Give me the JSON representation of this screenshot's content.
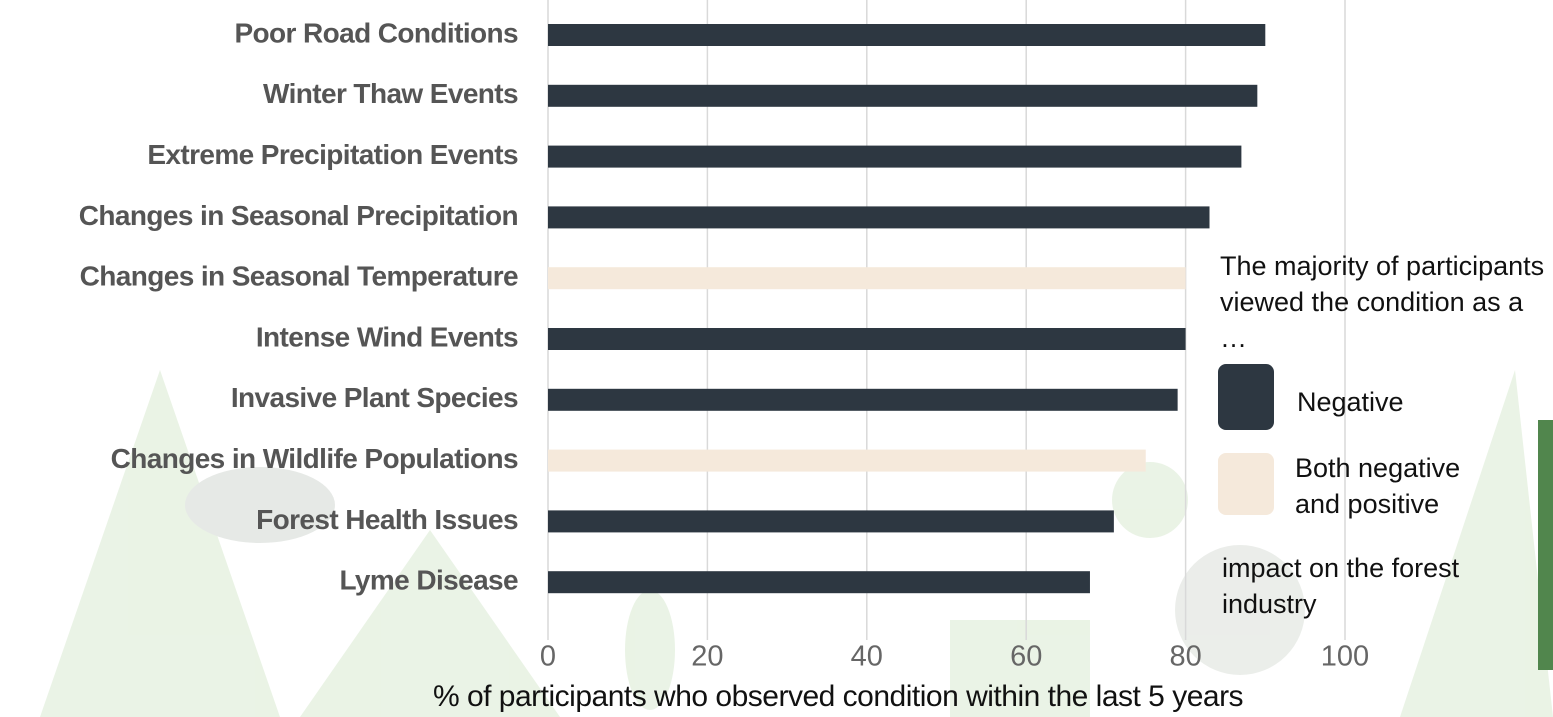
{
  "chart_data": {
    "type": "bar",
    "orientation": "horizontal",
    "categories": [
      "Poor Road Conditions",
      "Winter Thaw Events",
      "Extreme Precipitation Events",
      "Changes in Seasonal Precipitation",
      "Changes in Seasonal Temperature",
      "Intense Wind Events",
      "Invasive Plant Species",
      "Changes in Wildlife Populations",
      "Forest Health Issues",
      "Lyme Disease"
    ],
    "values": [
      90,
      89,
      87,
      83,
      80,
      80,
      79,
      75,
      71,
      68
    ],
    "bar_colors": [
      "#2d3741",
      "#2d3741",
      "#2d3741",
      "#2d3741",
      "#f5e9db",
      "#2d3741",
      "#2d3741",
      "#f5e9db",
      "#2d3741",
      "#2d3741"
    ],
    "xlim": [
      0,
      100
    ],
    "xticks": [
      0,
      20,
      40,
      60,
      80,
      100
    ],
    "grid": true,
    "x_label": "% of participants who observed condition within the last 5 years",
    "legend": {
      "title": "The majority of participants viewed the condition as a …",
      "items": [
        {
          "name": "Negative",
          "color": "#2d3741"
        },
        {
          "name": "Both negative and positive",
          "color": "#f5e9db"
        }
      ],
      "note": "impact on the forest industry"
    }
  }
}
